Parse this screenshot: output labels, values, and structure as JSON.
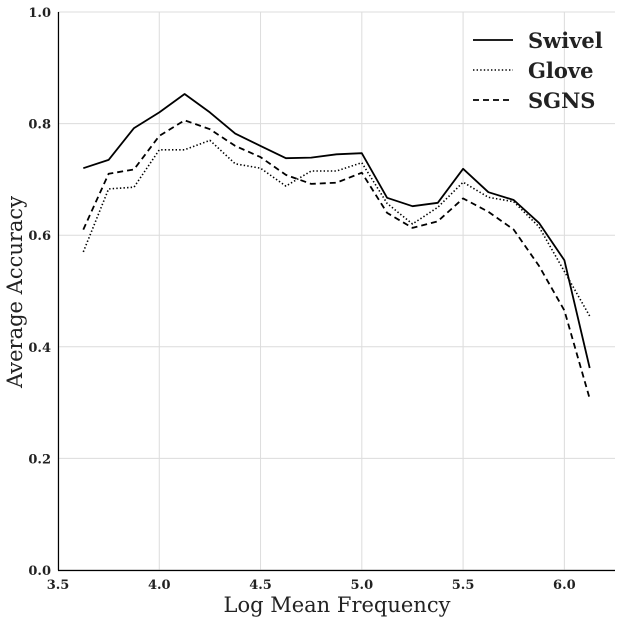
{
  "chart_data": {
    "type": "line",
    "xlabel": "Log Mean Frequency",
    "ylabel": "Average Accuracy",
    "xlim": [
      3.5,
      6.25
    ],
    "ylim": [
      0.0,
      1.0
    ],
    "xticks": [
      3.5,
      4.0,
      4.5,
      5.0,
      5.5,
      6.0
    ],
    "xtick_labels": [
      "3.5",
      "4.0",
      "4.5",
      "5.0",
      "5.5",
      "6.0"
    ],
    "yticks": [
      0.0,
      0.2,
      0.4,
      0.6,
      0.8,
      1.0
    ],
    "ytick_labels": [
      "0.0",
      "0.2",
      "0.4",
      "0.6",
      "0.8",
      "1.0"
    ],
    "grid": true,
    "legend_position": "top-right",
    "x": [
      3.625,
      3.75,
      3.875,
      4.0,
      4.125,
      4.25,
      4.375,
      4.5,
      4.625,
      4.75,
      4.875,
      5.0,
      5.125,
      5.25,
      5.375,
      5.5,
      5.625,
      5.75,
      5.875,
      6.0,
      6.125
    ],
    "series": [
      {
        "name": "Swivel",
        "style": "solid",
        "color": "#000000",
        "values": [
          0.72,
          0.735,
          0.792,
          0.82,
          0.853,
          0.82,
          0.782,
          0.76,
          0.738,
          0.739,
          0.745,
          0.747,
          0.667,
          0.652,
          0.658,
          0.719,
          0.677,
          0.663,
          0.622,
          0.555,
          0.362
        ]
      },
      {
        "name": "Glove",
        "style": "dotted",
        "color": "#000000",
        "values": [
          0.57,
          0.683,
          0.686,
          0.753,
          0.753,
          0.77,
          0.728,
          0.72,
          0.688,
          0.715,
          0.715,
          0.73,
          0.657,
          0.62,
          0.65,
          0.695,
          0.668,
          0.66,
          0.615,
          0.535,
          0.455
        ]
      },
      {
        "name": "SGNS",
        "style": "dashed",
        "color": "#000000",
        "values": [
          0.61,
          0.71,
          0.718,
          0.778,
          0.806,
          0.79,
          0.76,
          0.74,
          0.708,
          0.692,
          0.694,
          0.712,
          0.64,
          0.613,
          0.625,
          0.666,
          0.642,
          0.61,
          0.545,
          0.465,
          0.307
        ]
      }
    ]
  }
}
